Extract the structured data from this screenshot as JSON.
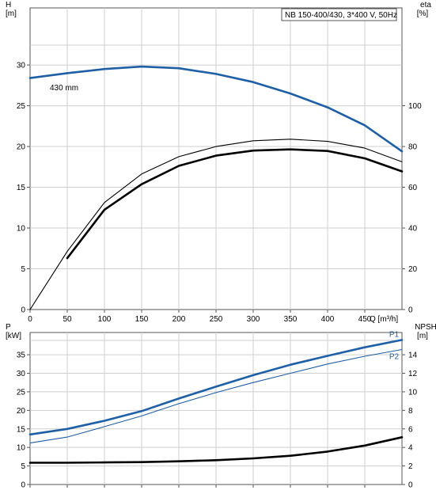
{
  "chart_data": [
    {
      "type": "line",
      "title": "NB 150-400/430, 3*400 V, 50Hz",
      "xlabel": "Q [m³/h]",
      "xlim": [
        0,
        500
      ],
      "xticks": [
        0,
        50,
        100,
        150,
        200,
        250,
        300,
        350,
        400,
        450
      ],
      "y_left": {
        "name": "H",
        "unit": "[m]",
        "lim": [
          0,
          37
        ],
        "ticks": [
          0,
          5,
          10,
          15,
          20,
          25,
          30
        ]
      },
      "y_right": {
        "name": "eta",
        "unit": "[%]",
        "lim": [
          0,
          148
        ],
        "ticks": [
          0,
          20,
          40,
          60,
          80,
          100
        ]
      },
      "grid": true,
      "curve_label": "430 mm",
      "series": [
        {
          "axis": "left",
          "color": "#1f5fa6",
          "style": "thick",
          "x": [
            0,
            50,
            100,
            150,
            200,
            250,
            300,
            350,
            400,
            450,
            500
          ],
          "y": [
            28.4,
            29.0,
            29.5,
            29.8,
            29.6,
            28.9,
            27.9,
            26.5,
            24.8,
            22.6,
            19.4
          ]
        },
        {
          "axis": "right",
          "color": "#000000",
          "style": "thin",
          "x": [
            0,
            50,
            100,
            150,
            200,
            250,
            300,
            350,
            400,
            450,
            500
          ],
          "y": [
            0,
            28.5,
            52.5,
            66.5,
            75.0,
            80.0,
            82.8,
            83.6,
            82.5,
            79.2,
            72.5
          ]
        },
        {
          "axis": "right",
          "color": "#000000",
          "style": "thick",
          "x": [
            50,
            100,
            150,
            200,
            250,
            300,
            350,
            400,
            450,
            500
          ],
          "y": [
            25.2,
            49.0,
            61.5,
            70.5,
            75.5,
            78.0,
            78.6,
            77.8,
            74.2,
            67.8
          ]
        }
      ]
    },
    {
      "type": "line",
      "xlim": [
        0,
        500
      ],
      "y_left": {
        "name": "P",
        "unit": "[kW]",
        "lim": [
          0,
          41
        ],
        "ticks": [
          0,
          5,
          10,
          15,
          20,
          25,
          30,
          35
        ]
      },
      "y_right": {
        "name": "NPSH",
        "unit": "[m]",
        "lim": [
          0,
          16.4
        ],
        "ticks": [
          0,
          2,
          4,
          6,
          8,
          10,
          12,
          14
        ]
      },
      "grid": true,
      "series": [
        {
          "name": "P1",
          "axis": "left",
          "color": "#1f5fa6",
          "style": "thick",
          "x": [
            0,
            50,
            100,
            150,
            200,
            250,
            300,
            350,
            400,
            450,
            500
          ],
          "y": [
            13.5,
            15.0,
            17.2,
            19.8,
            23.2,
            26.4,
            29.5,
            32.3,
            34.7,
            37.0,
            39.0
          ]
        },
        {
          "name": "P2",
          "axis": "left",
          "color": "#1f5fa6",
          "style": "thin",
          "x": [
            0,
            50,
            100,
            150,
            200,
            250,
            300,
            350,
            400,
            450,
            500
          ],
          "y": [
            11.2,
            12.8,
            15.6,
            18.5,
            21.8,
            24.8,
            27.5,
            30.0,
            32.5,
            34.6,
            36.4
          ]
        },
        {
          "axis": "right",
          "color": "#000000",
          "style": "thick",
          "x": [
            0,
            50,
            100,
            150,
            200,
            250,
            300,
            350,
            400,
            450,
            500
          ],
          "y": [
            2.35,
            2.35,
            2.38,
            2.42,
            2.5,
            2.62,
            2.82,
            3.1,
            3.55,
            4.2,
            5.1
          ]
        }
      ]
    }
  ]
}
